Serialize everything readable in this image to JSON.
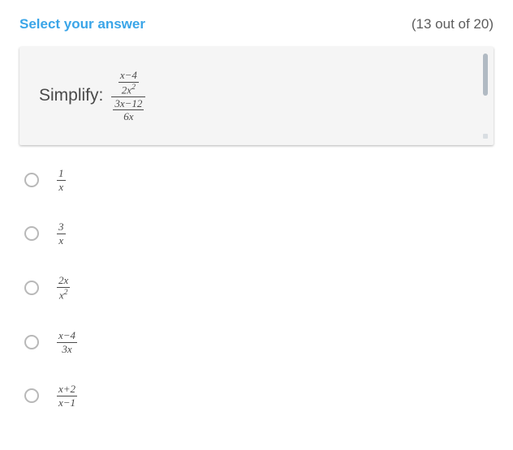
{
  "header": {
    "prompt": "Select your answer",
    "progress": "(13 out of 20)"
  },
  "question": {
    "label": "Simplify:",
    "top_frac": {
      "num": "x−4",
      "den_base": "2x",
      "den_exp": "2"
    },
    "bot_frac": {
      "num": "3x−12",
      "den": "6x"
    }
  },
  "options": [
    {
      "num": "1",
      "den": "x"
    },
    {
      "num": "3",
      "den": "x"
    },
    {
      "num": "2x",
      "den_base": "x",
      "den_exp": "2"
    },
    {
      "num": "x−4",
      "den": "3x"
    },
    {
      "num": "x+2",
      "den": "x−1"
    }
  ],
  "colors": {
    "accent": "#3aa5e8",
    "text": "#4a4a4a",
    "box_bg": "#f5f5f5",
    "radio_border": "#b8b8b8",
    "scroll_thumb": "#9aa6b2"
  }
}
